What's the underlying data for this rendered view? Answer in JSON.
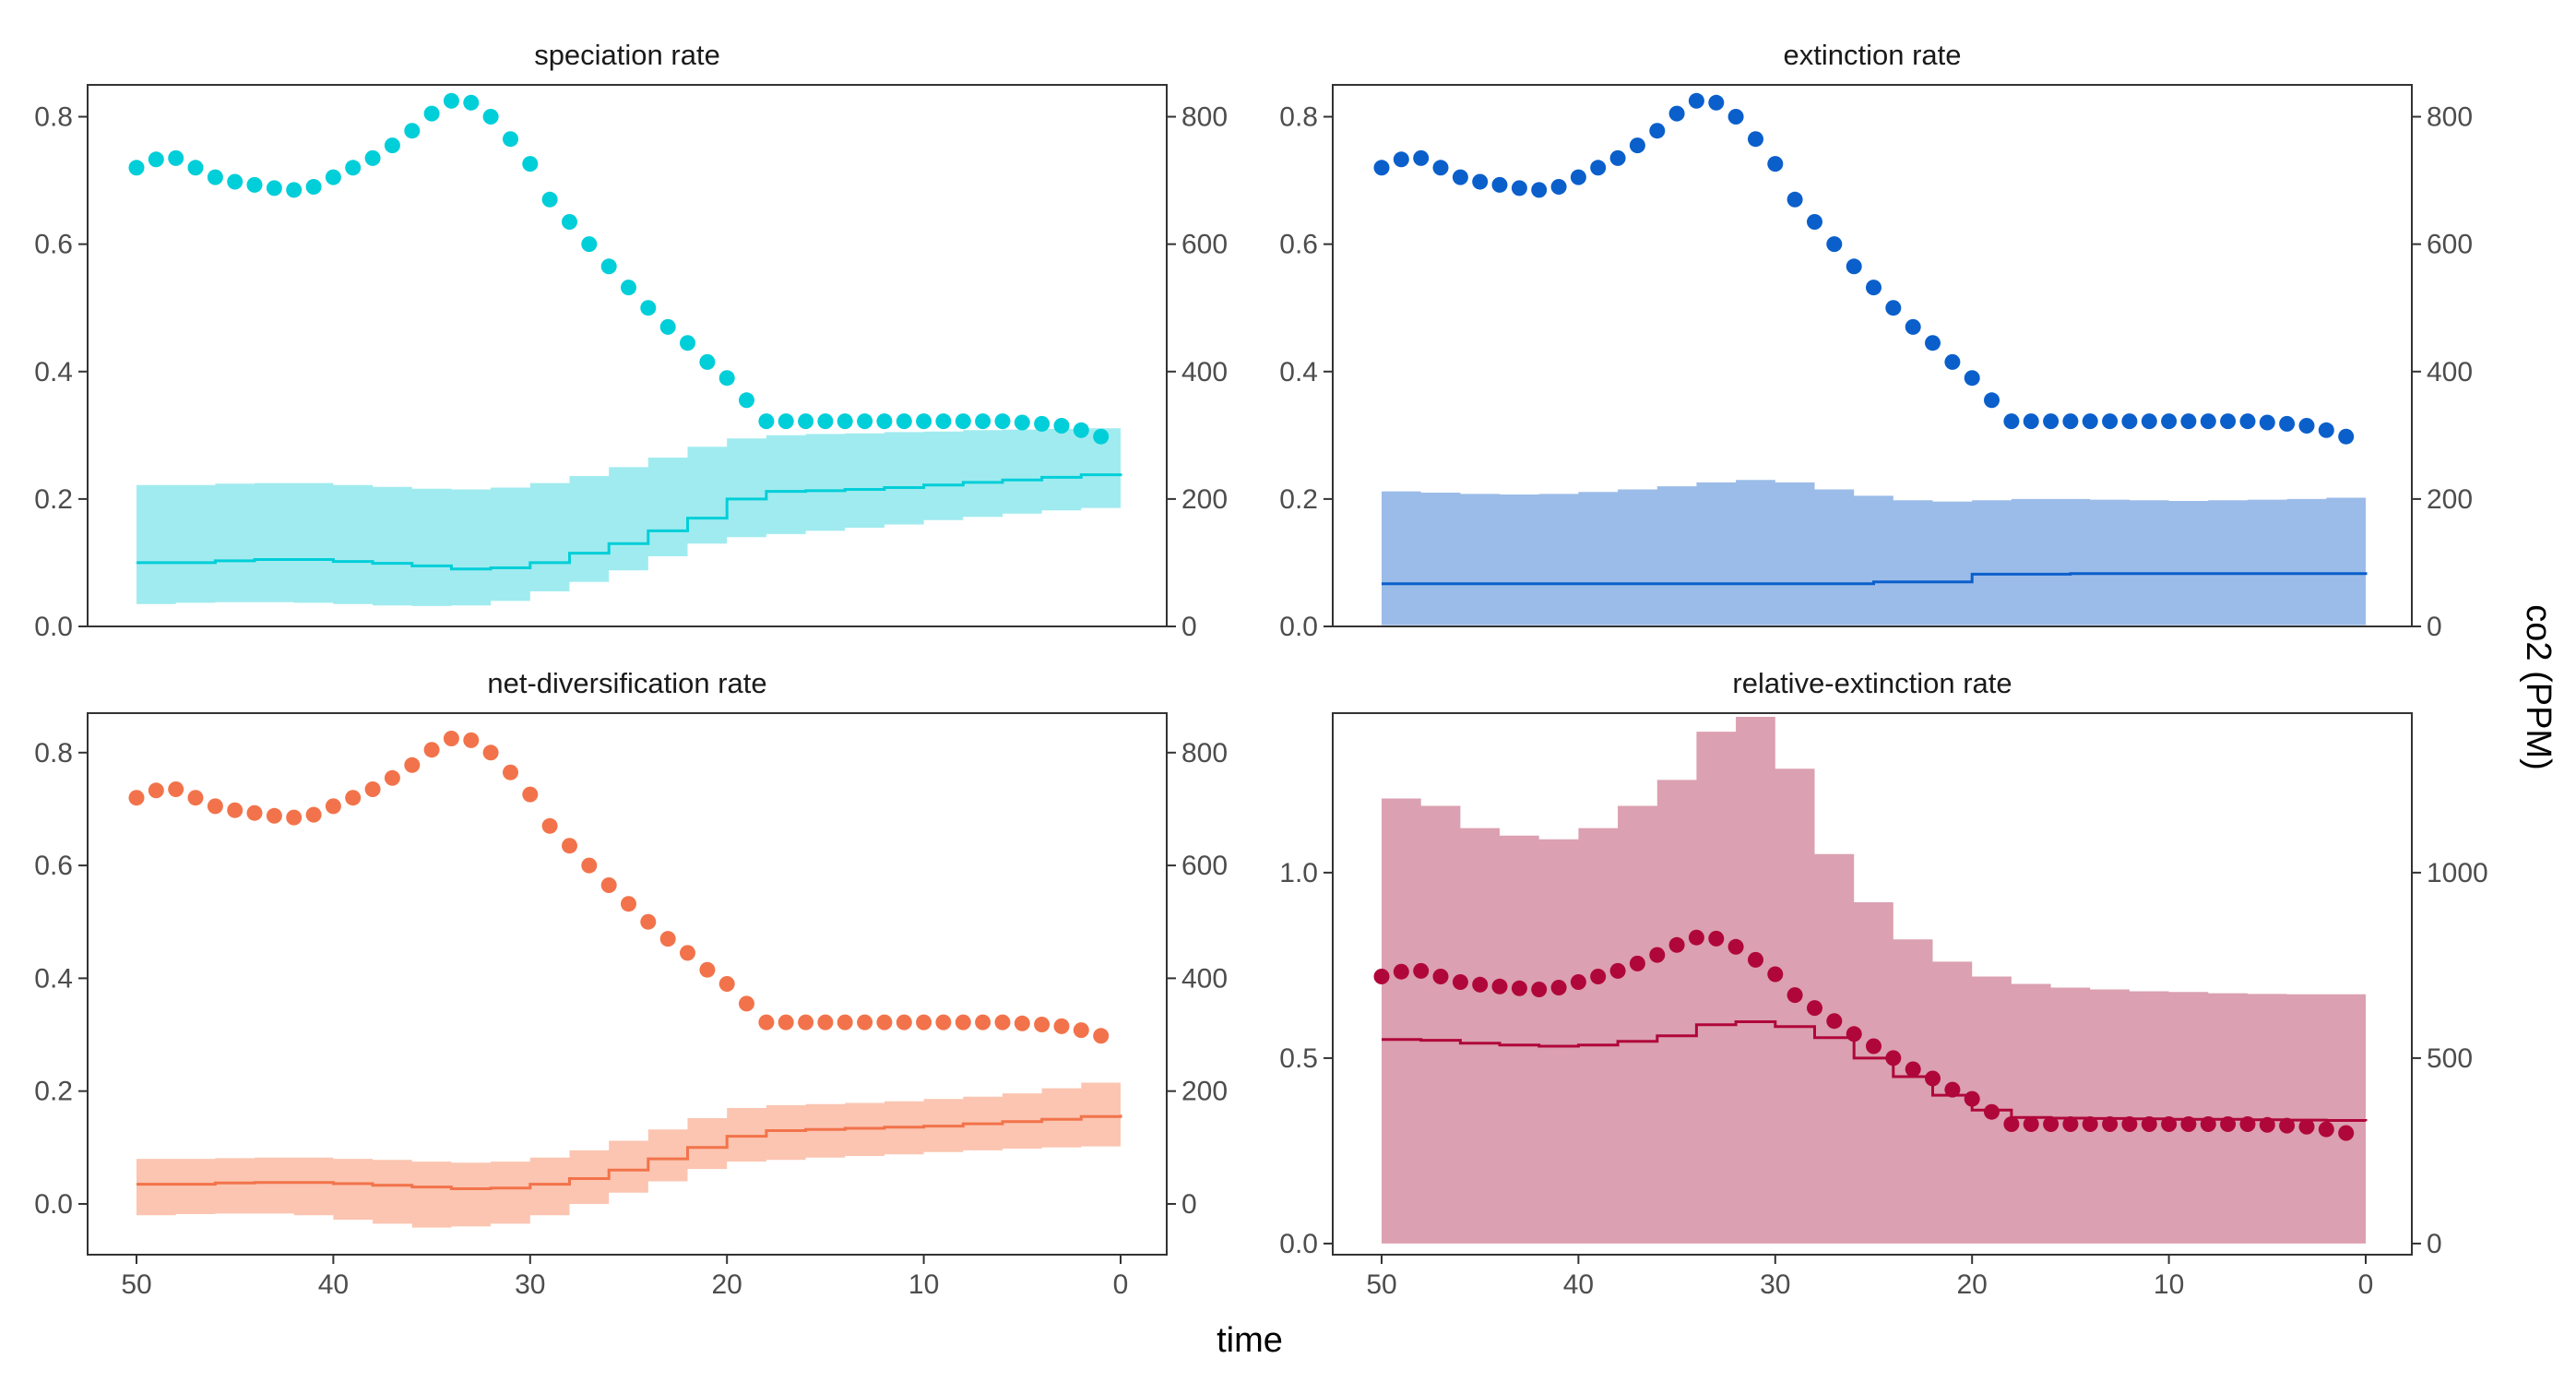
{
  "figure": {
    "xlabel": "time",
    "secondary_ylabel": "co2 (PPM)"
  },
  "chart_data": [
    {
      "type": "line",
      "title": "speciation rate",
      "color": "#00CED8",
      "band_color": "#A0EBEF",
      "x_reversed": true,
      "xlim": [
        50,
        0
      ],
      "ylim": [
        0,
        0.85
      ],
      "y_ticks": [
        "0.0",
        "0.2",
        "0.4",
        "0.6",
        "0.8"
      ],
      "y2lim": [
        0,
        850
      ],
      "y2_ticks": [
        "0",
        "200",
        "400",
        "600",
        "800"
      ],
      "x_ticks": [
        "50",
        "40",
        "30",
        "20",
        "10",
        "0"
      ],
      "rate_median": {
        "x": [
          50,
          48,
          46,
          44,
          42,
          40,
          38,
          36,
          34,
          32,
          30,
          28,
          26,
          24,
          22,
          20,
          18,
          16,
          14,
          12,
          10,
          8,
          6,
          4,
          2,
          0
        ],
        "y": [
          0.1,
          0.1,
          0.103,
          0.105,
          0.105,
          0.102,
          0.099,
          0.095,
          0.09,
          0.092,
          0.1,
          0.115,
          0.13,
          0.15,
          0.17,
          0.2,
          0.212,
          0.213,
          0.215,
          0.218,
          0.222,
          0.226,
          0.23,
          0.234,
          0.238,
          0.24
        ]
      },
      "rate_interval": {
        "x": [
          50,
          48,
          46,
          44,
          42,
          40,
          38,
          36,
          34,
          32,
          30,
          28,
          26,
          24,
          22,
          20,
          18,
          16,
          14,
          12,
          10,
          8,
          6,
          4,
          2,
          0
        ],
        "low": [
          0.035,
          0.035,
          0.037,
          0.038,
          0.038,
          0.037,
          0.035,
          0.033,
          0.032,
          0.033,
          0.04,
          0.055,
          0.07,
          0.088,
          0.11,
          0.13,
          0.14,
          0.145,
          0.15,
          0.155,
          0.16,
          0.167,
          0.172,
          0.177,
          0.182,
          0.186
        ],
        "high": [
          0.222,
          0.222,
          0.224,
          0.225,
          0.225,
          0.222,
          0.219,
          0.216,
          0.215,
          0.218,
          0.225,
          0.236,
          0.25,
          0.265,
          0.282,
          0.295,
          0.3,
          0.302,
          0.303,
          0.305,
          0.306,
          0.308,
          0.309,
          0.31,
          0.311,
          0.312
        ]
      },
      "co2": {
        "x": [
          50,
          49,
          48,
          47,
          46,
          45,
          44,
          43,
          42,
          41,
          40,
          39,
          38,
          37,
          36,
          35,
          34,
          33,
          32,
          31,
          30,
          29,
          28,
          27,
          26,
          25,
          24,
          23,
          22,
          21,
          20,
          19,
          18,
          17,
          16,
          15,
          14,
          13,
          12,
          11,
          10,
          9,
          8,
          7,
          6,
          5,
          4,
          3,
          2,
          1
        ],
        "y": [
          720,
          733,
          735,
          720,
          705,
          698,
          693,
          688,
          685,
          690,
          705,
          720,
          735,
          755,
          778,
          805,
          825,
          822,
          800,
          765,
          726,
          670,
          635,
          600,
          565,
          532,
          500,
          470,
          445,
          415,
          390,
          355,
          322,
          322,
          322,
          322,
          322,
          322,
          322,
          322,
          322,
          322,
          322,
          322,
          322,
          320,
          318,
          315,
          308,
          298
        ]
      }
    },
    {
      "type": "line",
      "title": "extinction rate",
      "color": "#0A5FCB",
      "band_color": "#9BBCE8",
      "x_reversed": true,
      "xlim": [
        50,
        0
      ],
      "ylim": [
        0,
        0.85
      ],
      "y_ticks": [
        "0.0",
        "0.2",
        "0.4",
        "0.6",
        "0.8"
      ],
      "y2lim": [
        0,
        850
      ],
      "y2_ticks": [
        "0",
        "200",
        "400",
        "600",
        "800"
      ],
      "x_ticks": [
        "50",
        "40",
        "30",
        "20",
        "10",
        "0"
      ],
      "rate_median": {
        "x": [
          50,
          40,
          30,
          25,
          20,
          15,
          10,
          5,
          0
        ],
        "y": [
          0.067,
          0.067,
          0.067,
          0.07,
          0.082,
          0.083,
          0.083,
          0.083,
          0.085
        ]
      },
      "rate_interval": {
        "x": [
          50,
          48,
          46,
          44,
          42,
          40,
          38,
          36,
          34,
          32,
          30,
          28,
          26,
          24,
          22,
          20,
          18,
          16,
          14,
          12,
          10,
          8,
          6,
          4,
          2,
          0
        ],
        "low": [
          0.002,
          0.002,
          0.002,
          0.002,
          0.002,
          0.002,
          0.002,
          0.002,
          0.002,
          0.002,
          0.002,
          0.002,
          0.002,
          0.002,
          0.002,
          0.002,
          0.002,
          0.002,
          0.002,
          0.002,
          0.002,
          0.002,
          0.002,
          0.002,
          0.002,
          0.002
        ],
        "high": [
          0.212,
          0.21,
          0.208,
          0.207,
          0.208,
          0.211,
          0.215,
          0.22,
          0.226,
          0.23,
          0.226,
          0.215,
          0.205,
          0.198,
          0.196,
          0.198,
          0.2,
          0.2,
          0.199,
          0.198,
          0.197,
          0.198,
          0.199,
          0.2,
          0.202,
          0.204
        ]
      },
      "co2": {
        "x": [
          50,
          49,
          48,
          47,
          46,
          45,
          44,
          43,
          42,
          41,
          40,
          39,
          38,
          37,
          36,
          35,
          34,
          33,
          32,
          31,
          30,
          29,
          28,
          27,
          26,
          25,
          24,
          23,
          22,
          21,
          20,
          19,
          18,
          17,
          16,
          15,
          14,
          13,
          12,
          11,
          10,
          9,
          8,
          7,
          6,
          5,
          4,
          3,
          2,
          1
        ],
        "y": [
          720,
          733,
          735,
          720,
          705,
          698,
          693,
          688,
          685,
          690,
          705,
          720,
          735,
          755,
          778,
          805,
          825,
          822,
          800,
          765,
          726,
          670,
          635,
          600,
          565,
          532,
          500,
          470,
          445,
          415,
          390,
          355,
          322,
          322,
          322,
          322,
          322,
          322,
          322,
          322,
          322,
          322,
          322,
          322,
          322,
          320,
          318,
          315,
          308,
          298
        ]
      }
    },
    {
      "type": "line",
      "title": "net-diversification rate",
      "color": "#F2734B",
      "band_color": "#FBC5B1",
      "x_reversed": true,
      "xlim": [
        50,
        0
      ],
      "ylim": [
        -0.09,
        0.87
      ],
      "y_ticks": [
        "0.0",
        "0.2",
        "0.4",
        "0.6",
        "0.8"
      ],
      "y2lim": [
        -90,
        870
      ],
      "y2_ticks": [
        "0",
        "200",
        "400",
        "600",
        "800"
      ],
      "x_ticks": [
        "50",
        "40",
        "30",
        "20",
        "10",
        "0"
      ],
      "rate_median": {
        "x": [
          50,
          48,
          46,
          44,
          42,
          40,
          38,
          36,
          34,
          32,
          30,
          28,
          26,
          24,
          22,
          20,
          18,
          16,
          14,
          12,
          10,
          8,
          6,
          4,
          2,
          0
        ],
        "y": [
          0.035,
          0.035,
          0.037,
          0.038,
          0.038,
          0.036,
          0.033,
          0.03,
          0.027,
          0.028,
          0.035,
          0.045,
          0.06,
          0.08,
          0.1,
          0.12,
          0.13,
          0.132,
          0.134,
          0.136,
          0.138,
          0.142,
          0.146,
          0.15,
          0.155,
          0.158
        ]
      },
      "rate_interval": {
        "x": [
          50,
          48,
          46,
          44,
          42,
          40,
          38,
          36,
          34,
          32,
          30,
          28,
          26,
          24,
          22,
          20,
          18,
          16,
          14,
          12,
          10,
          8,
          6,
          4,
          2,
          0
        ],
        "low": [
          -0.02,
          -0.02,
          -0.018,
          -0.017,
          -0.017,
          -0.02,
          -0.028,
          -0.035,
          -0.042,
          -0.04,
          -0.035,
          -0.02,
          0.0,
          0.02,
          0.04,
          0.062,
          0.075,
          0.078,
          0.082,
          0.085,
          0.088,
          0.092,
          0.095,
          0.098,
          0.1,
          0.102
        ],
        "high": [
          0.08,
          0.08,
          0.081,
          0.082,
          0.082,
          0.08,
          0.078,
          0.075,
          0.073,
          0.075,
          0.082,
          0.095,
          0.112,
          0.132,
          0.152,
          0.17,
          0.175,
          0.177,
          0.179,
          0.182,
          0.186,
          0.19,
          0.196,
          0.205,
          0.215,
          0.225
        ]
      },
      "co2": {
        "x": [
          50,
          49,
          48,
          47,
          46,
          45,
          44,
          43,
          42,
          41,
          40,
          39,
          38,
          37,
          36,
          35,
          34,
          33,
          32,
          31,
          30,
          29,
          28,
          27,
          26,
          25,
          24,
          23,
          22,
          21,
          20,
          19,
          18,
          17,
          16,
          15,
          14,
          13,
          12,
          11,
          10,
          9,
          8,
          7,
          6,
          5,
          4,
          3,
          2,
          1
        ],
        "y": [
          720,
          733,
          735,
          720,
          705,
          698,
          693,
          688,
          685,
          690,
          705,
          720,
          735,
          755,
          778,
          805,
          825,
          822,
          800,
          765,
          726,
          670,
          635,
          600,
          565,
          532,
          500,
          470,
          445,
          415,
          390,
          355,
          322,
          322,
          322,
          322,
          322,
          322,
          322,
          322,
          322,
          322,
          322,
          322,
          322,
          320,
          318,
          315,
          308,
          298
        ]
      }
    },
    {
      "type": "line",
      "title": "relative-extinction rate",
      "color": "#B0073A",
      "band_color": "#DBA0B1",
      "x_reversed": true,
      "xlim": [
        50,
        0
      ],
      "ylim": [
        -0.03,
        1.43
      ],
      "y_ticks": [
        "0.0",
        "0.5",
        "1.0"
      ],
      "y_tick_values": [
        0,
        0.5,
        1.0
      ],
      "y2lim": [
        -30,
        1430
      ],
      "y2_ticks": [
        "0",
        "500",
        "1000"
      ],
      "y2_tick_values": [
        0,
        500,
        1000
      ],
      "x_ticks": [
        "50",
        "40",
        "30",
        "20",
        "10",
        "0"
      ],
      "rate_median": {
        "x": [
          50,
          48,
          46,
          44,
          42,
          40,
          38,
          36,
          34,
          32,
          30,
          28,
          26,
          24,
          22,
          20,
          18,
          16,
          14,
          12,
          10,
          8,
          6,
          4,
          2,
          0
        ],
        "y": [
          0.55,
          0.548,
          0.54,
          0.535,
          0.532,
          0.535,
          0.545,
          0.56,
          0.59,
          0.598,
          0.585,
          0.555,
          0.5,
          0.45,
          0.4,
          0.36,
          0.34,
          0.338,
          0.337,
          0.336,
          0.335,
          0.335,
          0.334,
          0.333,
          0.332,
          0.33
        ]
      },
      "rate_interval": {
        "x": [
          50,
          48,
          46,
          44,
          42,
          40,
          38,
          36,
          34,
          32,
          30,
          28,
          26,
          24,
          22,
          20,
          18,
          16,
          14,
          12,
          10,
          8,
          6,
          4,
          2,
          0
        ],
        "low": [
          0.0,
          0.0,
          0.0,
          0.0,
          0.0,
          0.0,
          0.0,
          0.0,
          0.0,
          0.0,
          0.0,
          0.0,
          0.0,
          0.0,
          0.0,
          0.0,
          0.0,
          0.0,
          0.0,
          0.0,
          0.0,
          0.0,
          0.0,
          0.0,
          0.0,
          0.0
        ],
        "high": [
          1.2,
          1.18,
          1.12,
          1.1,
          1.09,
          1.12,
          1.18,
          1.25,
          1.38,
          1.42,
          1.28,
          1.05,
          0.92,
          0.82,
          0.76,
          0.72,
          0.7,
          0.69,
          0.685,
          0.68,
          0.678,
          0.675,
          0.673,
          0.672,
          0.672,
          0.672
        ]
      },
      "co2": {
        "x": [
          50,
          49,
          48,
          47,
          46,
          45,
          44,
          43,
          42,
          41,
          40,
          39,
          38,
          37,
          36,
          35,
          34,
          33,
          32,
          31,
          30,
          29,
          28,
          27,
          26,
          25,
          24,
          23,
          22,
          21,
          20,
          19,
          18,
          17,
          16,
          15,
          14,
          13,
          12,
          11,
          10,
          9,
          8,
          7,
          6,
          5,
          4,
          3,
          2,
          1
        ],
        "y": [
          720,
          733,
          735,
          720,
          705,
          698,
          693,
          688,
          685,
          690,
          705,
          720,
          735,
          755,
          778,
          805,
          825,
          822,
          800,
          765,
          726,
          670,
          635,
          600,
          565,
          532,
          500,
          470,
          445,
          415,
          390,
          355,
          322,
          322,
          322,
          322,
          322,
          322,
          322,
          322,
          322,
          322,
          322,
          322,
          322,
          320,
          318,
          315,
          308,
          298
        ]
      }
    }
  ]
}
